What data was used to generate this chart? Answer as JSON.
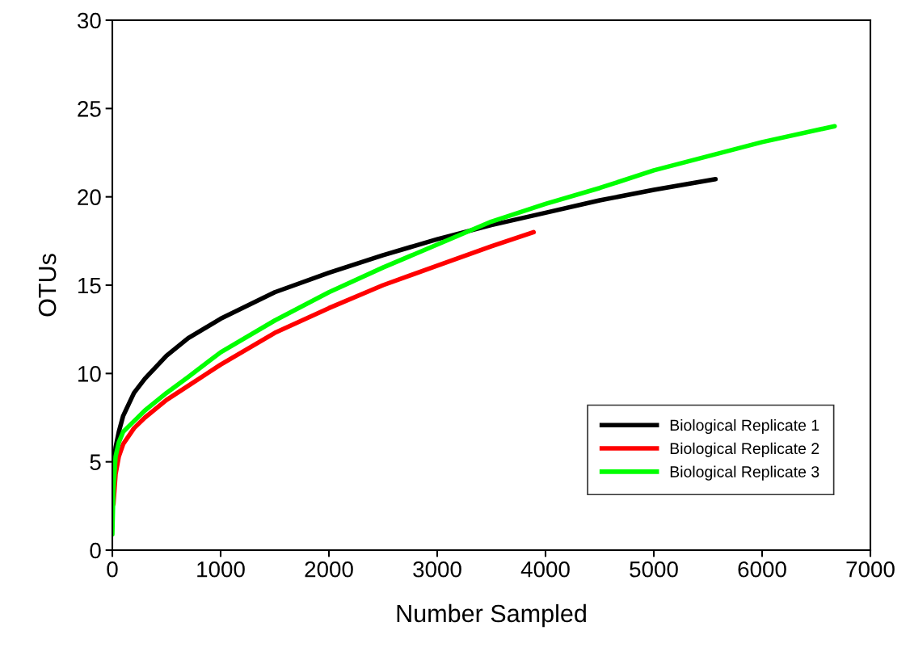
{
  "chart_data": {
    "type": "line",
    "xlabel": "Number Sampled",
    "ylabel": "OTUs",
    "xlim": [
      0,
      7000
    ],
    "xticks": [
      0,
      1000,
      2000,
      3000,
      4000,
      5000,
      6000,
      7000
    ],
    "ylim": [
      0,
      30
    ],
    "yticks": [
      0,
      5,
      10,
      15,
      20,
      25,
      30
    ],
    "grid": false,
    "legend": "bottom right",
    "marker": "none",
    "line_style": "solid",
    "series": [
      {
        "name": "Biological Replicate 1",
        "color": "#000000",
        "x": [
          10,
          30,
          60,
          100,
          200,
          300,
          500,
          700,
          1000,
          1500,
          2000,
          2500,
          3000,
          3500,
          4000,
          4500,
          5000,
          5570
        ],
        "values": [
          4.5,
          5.8,
          6.7,
          7.6,
          8.9,
          9.7,
          11.0,
          12.0,
          13.1,
          14.6,
          15.7,
          16.7,
          17.6,
          18.4,
          19.1,
          19.8,
          20.4,
          21.0
        ]
      },
      {
        "name": "Biological Replicate 2",
        "color": "#ff0000",
        "x": [
          10,
          30,
          60,
          100,
          200,
          300,
          500,
          700,
          1000,
          1500,
          2000,
          2500,
          3000,
          3500,
          3890
        ],
        "values": [
          2.6,
          4.3,
          5.3,
          6.0,
          6.9,
          7.5,
          8.5,
          9.3,
          10.5,
          12.3,
          13.7,
          15.0,
          16.1,
          17.2,
          18.0
        ]
      },
      {
        "name": "Biological Replicate 3",
        "color": "#00ff00",
        "x": [
          0,
          10,
          30,
          60,
          100,
          200,
          300,
          500,
          700,
          1000,
          1500,
          2000,
          2500,
          3000,
          3500,
          4000,
          4500,
          5000,
          5500,
          6000,
          6670
        ],
        "values": [
          0.9,
          3.5,
          5.3,
          6.1,
          6.7,
          7.3,
          7.9,
          8.9,
          9.8,
          11.2,
          13.0,
          14.6,
          16.0,
          17.3,
          18.6,
          19.6,
          20.5,
          21.5,
          22.3,
          23.1,
          24.0
        ]
      }
    ]
  }
}
